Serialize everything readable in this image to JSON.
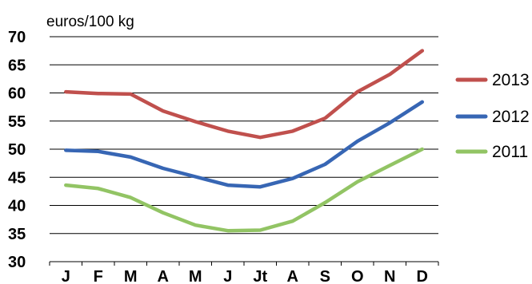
{
  "chart_data": {
    "type": "line",
    "title": "",
    "unit_label": "euros/100 kg",
    "xlabel": "",
    "ylabel": "",
    "ylim": [
      30,
      70
    ],
    "yticks": [
      30,
      35,
      40,
      45,
      50,
      55,
      60,
      65,
      70
    ],
    "grid": true,
    "legend_position": "right",
    "categories": [
      "J",
      "F",
      "M",
      "A",
      "M",
      "J",
      "Jt",
      "A",
      "S",
      "O",
      "N",
      "D"
    ],
    "series": [
      {
        "name": "2013",
        "color": "#c0504d",
        "values": [
          60.2,
          59.9,
          59.8,
          56.8,
          54.9,
          53.2,
          52.1,
          53.2,
          55.5,
          60.2,
          63.3,
          67.5
        ]
      },
      {
        "name": "2012",
        "color": "#3766b4",
        "values": [
          49.8,
          49.6,
          48.6,
          46.6,
          45.1,
          43.6,
          43.3,
          44.8,
          47.3,
          51.4,
          54.7,
          58.4
        ]
      },
      {
        "name": "2011",
        "color": "#92c464",
        "values": [
          43.6,
          43.0,
          41.4,
          38.7,
          36.5,
          35.5,
          35.6,
          37.2,
          40.5,
          44.2,
          47.1,
          50.0
        ]
      }
    ]
  }
}
